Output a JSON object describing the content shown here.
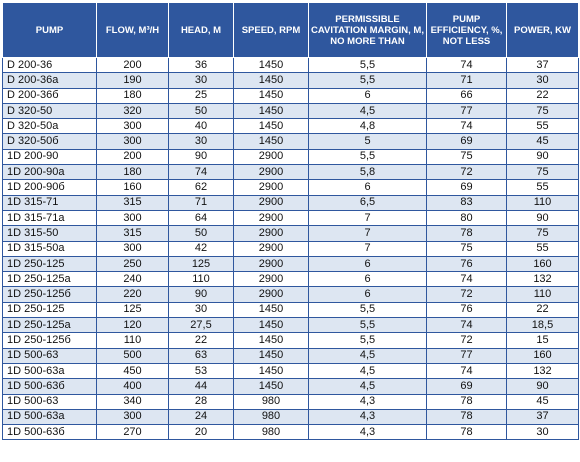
{
  "table": {
    "headers": [
      "PUMP",
      "FLOW, M³/H",
      "HEAD, M",
      "SPEED, RPM",
      "PERMISSIBLE CAVITATION MARGIN, M, NO MORE THAN",
      "PUMP EFFICIENCY, %, NOT LESS",
      "POWER, KW"
    ],
    "rows": [
      [
        "D 200-36",
        "200",
        "36",
        "1450",
        "5,5",
        "74",
        "37"
      ],
      [
        "D 200-36a",
        "190",
        "30",
        "1450",
        "5,5",
        "71",
        "30"
      ],
      [
        "D 200-36б",
        "180",
        "25",
        "1450",
        "6",
        "66",
        "22"
      ],
      [
        "D 320-50",
        "320",
        "50",
        "1450",
        "4,5",
        "77",
        "75"
      ],
      [
        "D 320-50a",
        "300",
        "40",
        "1450",
        "4,8",
        "74",
        "55"
      ],
      [
        "D 320-50б",
        "300",
        "30",
        "1450",
        "5",
        "69",
        "45"
      ],
      [
        "1D 200-90",
        "200",
        "90",
        "2900",
        "5,5",
        "75",
        "90"
      ],
      [
        "1D 200-90a",
        "180",
        "74",
        "2900",
        "5,8",
        "72",
        "75"
      ],
      [
        "1D 200-90б",
        "160",
        "62",
        "2900",
        "6",
        "69",
        "55"
      ],
      [
        "1D 315-71",
        "315",
        "71",
        "2900",
        "6,5",
        "83",
        "110"
      ],
      [
        "1D 315-71a",
        "300",
        "64",
        "2900",
        "7",
        "80",
        "90"
      ],
      [
        "1D 315-50",
        "315",
        "50",
        "2900",
        "7",
        "78",
        "75"
      ],
      [
        "1D 315-50a",
        "300",
        "42",
        "2900",
        "7",
        "75",
        "55"
      ],
      [
        "1D 250-125",
        "250",
        "125",
        "2900",
        "6",
        "76",
        "160"
      ],
      [
        "1D 250-125a",
        "240",
        "110",
        "2900",
        "6",
        "74",
        "132"
      ],
      [
        "1D 250-125б",
        "220",
        "90",
        "2900",
        "6",
        "72",
        "110"
      ],
      [
        "1D 250-125",
        "125",
        "30",
        "1450",
        "5,5",
        "76",
        "22"
      ],
      [
        "1D 250-125a",
        "120",
        "27,5",
        "1450",
        "5,5",
        "74",
        "18,5"
      ],
      [
        "1D 250-125б",
        "110",
        "22",
        "1450",
        "5,5",
        "72",
        "15"
      ],
      [
        "1D 500-63",
        "500",
        "63",
        "1450",
        "4,5",
        "77",
        "160"
      ],
      [
        "1D 500-63a",
        "450",
        "53",
        "1450",
        "4,5",
        "74",
        "132"
      ],
      [
        "1D 500-63б",
        "400",
        "44",
        "1450",
        "4,5",
        "69",
        "90"
      ],
      [
        "1D 500-63",
        "340",
        "28",
        "980",
        "4,3",
        "78",
        "45"
      ],
      [
        "1D 500-63a",
        "300",
        "24",
        "980",
        "4,3",
        "78",
        "37"
      ],
      [
        "1D 500-63б",
        "270",
        "20",
        "980",
        "4,3",
        "78",
        "30"
      ]
    ]
  },
  "colors": {
    "header_background": "#2f579e",
    "header_text": "#ffffff",
    "row_band": "#dde6f2",
    "grid_line": "#2f579e"
  }
}
